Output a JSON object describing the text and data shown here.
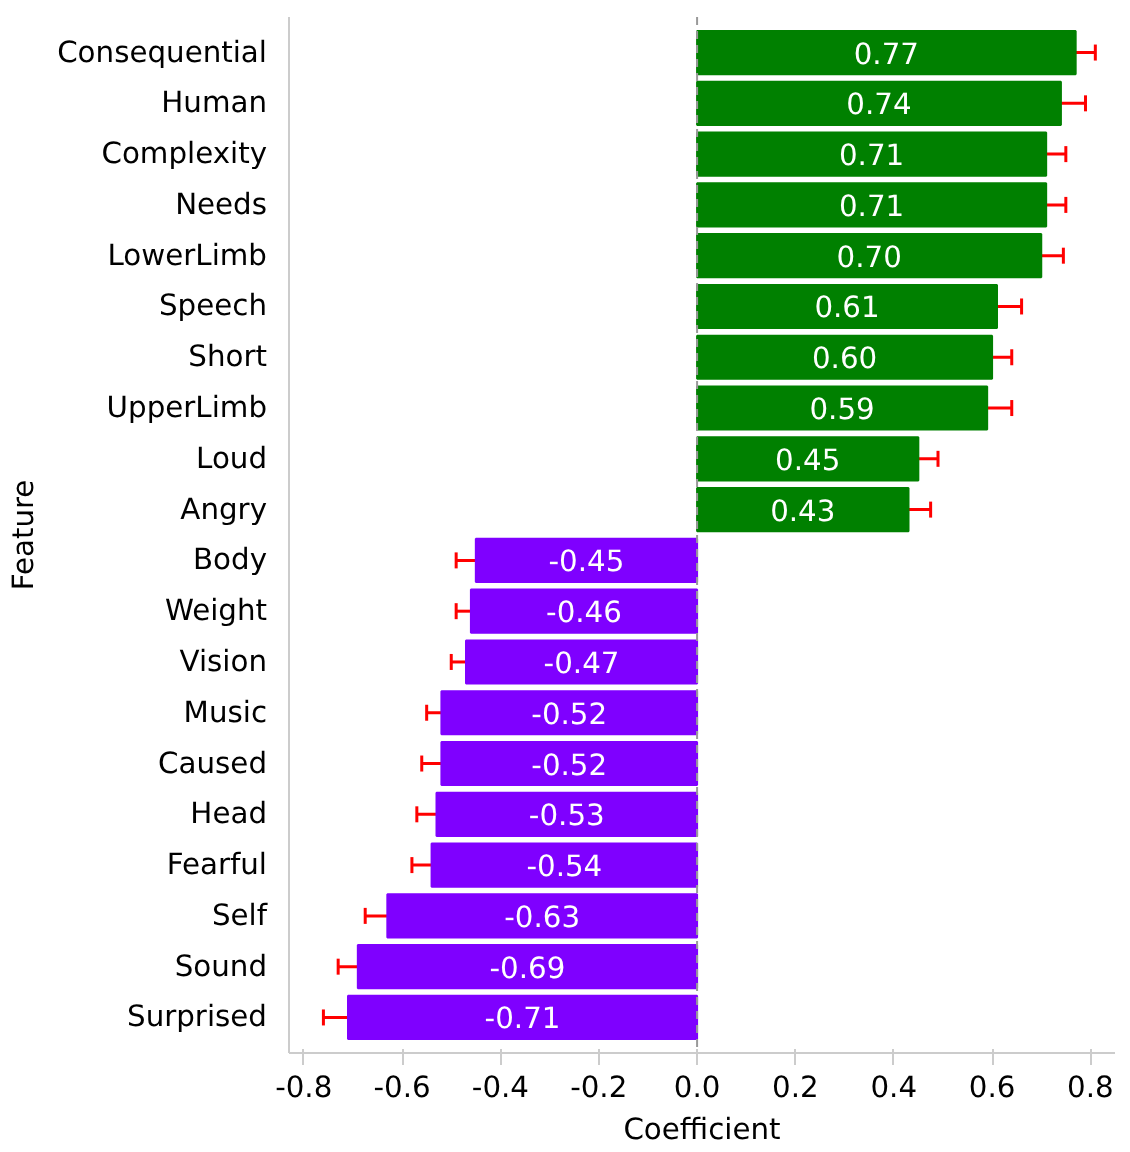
{
  "chart_data": {
    "type": "bar",
    "orientation": "horizontal",
    "xlabel": "Coefficient",
    "ylabel": "Feature",
    "categories": [
      "Consequential",
      "Human",
      "Complexity",
      "Needs",
      "LowerLimb",
      "Speech",
      "Short",
      "UpperLimb",
      "Loud",
      "Angry",
      "Body",
      "Weight",
      "Vision",
      "Music",
      "Caused",
      "Head",
      "Fearful",
      "Self",
      "Sound",
      "Surprised"
    ],
    "values": [
      0.77,
      0.74,
      0.71,
      0.71,
      0.7,
      0.61,
      0.6,
      0.59,
      0.45,
      0.43,
      -0.45,
      -0.46,
      -0.47,
      -0.52,
      -0.52,
      -0.53,
      -0.54,
      -0.63,
      -0.69,
      -0.71
    ],
    "colors": [
      "#008000",
      "#008000",
      "#008000",
      "#008000",
      "#008000",
      "#008000",
      "#008000",
      "#008000",
      "#008000",
      "#008000",
      "#7f00ff",
      "#7f00ff",
      "#7f00ff",
      "#7f00ff",
      "#7f00ff",
      "#7f00ff",
      "#7f00ff",
      "#7f00ff",
      "#7f00ff",
      "#7f00ff"
    ],
    "errors": [
      0.04,
      0.05,
      0.04,
      0.04,
      0.045,
      0.05,
      0.04,
      0.05,
      0.04,
      0.045,
      0.04,
      0.03,
      0.03,
      0.03,
      0.04,
      0.04,
      0.04,
      0.045,
      0.04,
      0.05
    ],
    "value_labels": [
      "0.77",
      "0.74",
      "0.71",
      "0.71",
      "0.70",
      "0.61",
      "0.60",
      "0.59",
      "0.45",
      "0.43",
      "-0.45",
      "-0.46",
      "-0.47",
      "-0.52",
      "-0.52",
      "-0.53",
      "-0.54",
      "-0.63",
      "-0.69",
      "-0.71"
    ],
    "xlim": [
      -0.83,
      0.85
    ],
    "xticks": [
      {
        "value": -0.8,
        "label": "-0.8"
      },
      {
        "value": -0.6,
        "label": "-0.6"
      },
      {
        "value": -0.4,
        "label": "-0.4"
      },
      {
        "value": -0.2,
        "label": "-0.2"
      },
      {
        "value": 0,
        "label": "0.0"
      },
      {
        "value": 0.2,
        "label": "0.2"
      },
      {
        "value": 0.4,
        "label": "0.4"
      },
      {
        "value": 0.6,
        "label": "0.6"
      },
      {
        "value": 0.8,
        "label": "0.8"
      }
    ],
    "ref_lines": [
      {
        "axis": "x",
        "value": 0,
        "color": "#999999",
        "line_style": "dashed"
      }
    ],
    "grid": false
  }
}
